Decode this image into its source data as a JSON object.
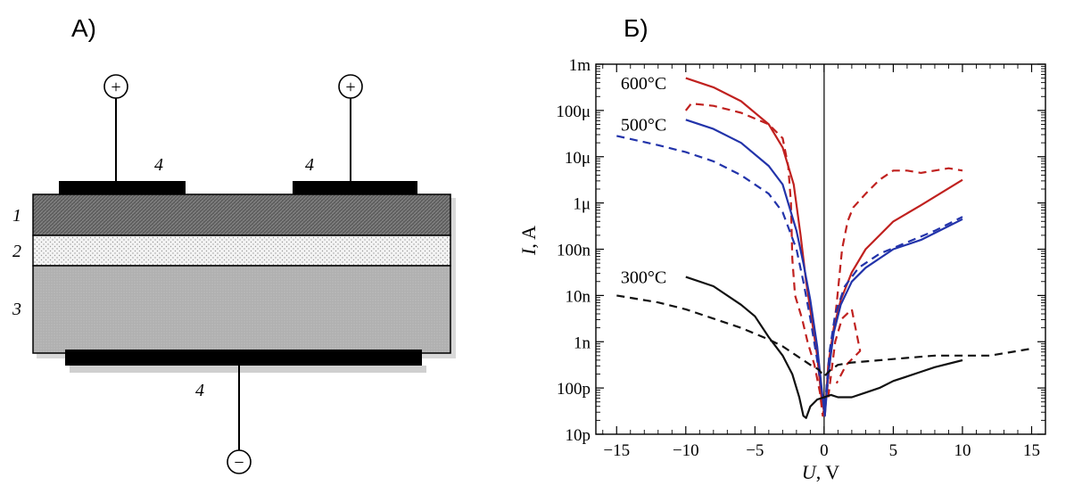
{
  "panels": {
    "left": {
      "label": "А)"
    },
    "right": {
      "label": "Б)"
    }
  },
  "device": {
    "layer_labels": [
      "1",
      "2",
      "3"
    ],
    "electrode_label": "4",
    "plus_sign": "+",
    "minus_sign": "−",
    "colors": {
      "layer1": "#6b6b6b",
      "layer2": "#f2f2f2",
      "layer3": "#b3b3b3",
      "electrode": "#000000"
    }
  },
  "chart_data": {
    "type": "line",
    "xlabel_symbol": "U",
    "xlabel_unit": ", V",
    "ylabel_symbol": "I",
    "ylabel_unit": ", A",
    "x_range": [
      -16.5,
      16
    ],
    "y_scale": "log",
    "y_range_log10": [
      -11,
      -3
    ],
    "x_ticks": [
      {
        "v": -15,
        "label": "−15"
      },
      {
        "v": -10,
        "label": "−10"
      },
      {
        "v": -5,
        "label": "−5"
      },
      {
        "v": 0,
        "label": "0"
      },
      {
        "v": 5,
        "label": "5"
      },
      {
        "v": 10,
        "label": "10"
      },
      {
        "v": 15,
        "label": "15"
      }
    ],
    "y_ticks": [
      {
        "e": -3,
        "label": "1m"
      },
      {
        "e": -4,
        "label": "100μ"
      },
      {
        "e": -5,
        "label": "10μ"
      },
      {
        "e": -6,
        "label": "1μ"
      },
      {
        "e": -7,
        "label": "100n"
      },
      {
        "e": -8,
        "label": "10n"
      },
      {
        "e": -9,
        "label": "1n"
      },
      {
        "e": -10,
        "label": "100p"
      },
      {
        "e": -11,
        "label": "10p"
      }
    ],
    "annotations": [
      {
        "text": "600°C",
        "x": -14.7,
        "e": -3.4
      },
      {
        "text": "500°C",
        "x": -14.7,
        "e": -4.3
      },
      {
        "text": "300°C",
        "x": -14.7,
        "e": -7.6
      }
    ],
    "series": [
      {
        "temp": "600°C",
        "style": "solid",
        "color": "#c0211f",
        "points": [
          [
            -10,
            -3.3
          ],
          [
            -8,
            -3.5
          ],
          [
            -6,
            -3.8
          ],
          [
            -4,
            -4.3
          ],
          [
            -3,
            -4.8
          ],
          [
            -2.2,
            -5.6
          ],
          [
            -1.7,
            -6.7
          ],
          [
            -1.3,
            -7.7
          ],
          [
            -0.9,
            -8.5
          ],
          [
            -0.5,
            -9.3
          ],
          [
            -0.2,
            -10.2
          ],
          [
            0.05,
            -10.6
          ],
          [
            0.3,
            -9.5
          ],
          [
            0.7,
            -8.7
          ],
          [
            1.2,
            -8.1
          ],
          [
            2,
            -7.5
          ],
          [
            3,
            -7.0
          ],
          [
            5,
            -6.4
          ],
          [
            7,
            -6.05
          ],
          [
            10,
            -5.5
          ]
        ]
      },
      {
        "temp": "600°C",
        "style": "dashed",
        "color": "#c0211f",
        "points": [
          [
            -10,
            -4.0
          ],
          [
            -9.6,
            -3.85
          ],
          [
            -8,
            -3.9
          ],
          [
            -6,
            -4.05
          ],
          [
            -4,
            -4.3
          ],
          [
            -3,
            -4.6
          ],
          [
            -2.6,
            -5.2
          ],
          [
            -2.4,
            -6.0
          ],
          [
            -2.3,
            -7.2
          ],
          [
            -2.1,
            -8.0
          ],
          [
            -1.6,
            -8.5
          ],
          [
            -1.2,
            -9.0
          ],
          [
            -0.7,
            -9.5
          ],
          [
            -0.3,
            -10.1
          ],
          [
            -0.1,
            -10.6
          ],
          [
            0.2,
            -10.1
          ],
          [
            0.5,
            -9.2
          ],
          [
            0.9,
            -8.2
          ],
          [
            1.3,
            -7.0
          ],
          [
            1.7,
            -6.4
          ],
          [
            2.1,
            -6.1
          ],
          [
            3,
            -5.8
          ],
          [
            4,
            -5.5
          ],
          [
            5,
            -5.3
          ],
          [
            6,
            -5.3
          ],
          [
            7,
            -5.35
          ],
          [
            8,
            -5.3
          ],
          [
            9,
            -5.25
          ],
          [
            10,
            -5.3
          ]
        ]
      },
      {
        "temp": "600°C",
        "style": "dashed",
        "color": "#c0211f",
        "points": [
          [
            0.3,
            -10.2
          ],
          [
            0.8,
            -9.0
          ],
          [
            1.3,
            -8.5
          ],
          [
            2.0,
            -8.3
          ],
          [
            2.6,
            -9.2
          ],
          [
            1.6,
            -9.5
          ],
          [
            0.9,
            -9.9
          ]
        ]
      },
      {
        "temp": "500°C",
        "style": "solid",
        "color": "#2233aa",
        "points": [
          [
            -10,
            -4.2
          ],
          [
            -8,
            -4.4
          ],
          [
            -6,
            -4.7
          ],
          [
            -4,
            -5.2
          ],
          [
            -3,
            -5.6
          ],
          [
            -2,
            -6.6
          ],
          [
            -1.5,
            -7.3
          ],
          [
            -1,
            -8.1
          ],
          [
            -0.5,
            -9.1
          ],
          [
            -0.15,
            -10.1
          ],
          [
            0.05,
            -10.6
          ],
          [
            0.3,
            -9.7
          ],
          [
            0.7,
            -8.8
          ],
          [
            1.2,
            -8.2
          ],
          [
            2,
            -7.7
          ],
          [
            3,
            -7.4
          ],
          [
            5,
            -7.0
          ],
          [
            7,
            -6.8
          ],
          [
            10,
            -6.35
          ]
        ]
      },
      {
        "temp": "500°C",
        "style": "dashed",
        "color": "#2233aa",
        "points": [
          [
            -15,
            -4.55
          ],
          [
            -12,
            -4.75
          ],
          [
            -10,
            -4.9
          ],
          [
            -8,
            -5.1
          ],
          [
            -6,
            -5.4
          ],
          [
            -4,
            -5.8
          ],
          [
            -3,
            -6.2
          ],
          [
            -2,
            -7.0
          ],
          [
            -1.5,
            -7.7
          ],
          [
            -1,
            -8.5
          ],
          [
            -0.5,
            -9.4
          ],
          [
            -0.15,
            -10.1
          ],
          [
            0.05,
            -10.4
          ],
          [
            0.4,
            -9.2
          ],
          [
            0.8,
            -8.4
          ],
          [
            1.5,
            -7.8
          ],
          [
            2.5,
            -7.4
          ],
          [
            4,
            -7.1
          ],
          [
            6,
            -6.85
          ],
          [
            8,
            -6.6
          ],
          [
            10,
            -6.3
          ]
        ]
      },
      {
        "temp": "300°C",
        "style": "solid",
        "color": "#111111",
        "points": [
          [
            -10,
            -7.6
          ],
          [
            -8,
            -7.8
          ],
          [
            -6,
            -8.2
          ],
          [
            -5,
            -8.45
          ],
          [
            -4,
            -8.9
          ],
          [
            -3,
            -9.3
          ],
          [
            -2.3,
            -9.7
          ],
          [
            -1.8,
            -10.2
          ],
          [
            -1.5,
            -10.6
          ],
          [
            -1.3,
            -10.65
          ],
          [
            -1.0,
            -10.4
          ],
          [
            -0.5,
            -10.25
          ],
          [
            0,
            -10.2
          ],
          [
            0.5,
            -10.15
          ],
          [
            1,
            -10.2
          ],
          [
            2,
            -10.2
          ],
          [
            3,
            -10.1
          ],
          [
            4,
            -10.0
          ],
          [
            5,
            -9.85
          ],
          [
            6,
            -9.75
          ],
          [
            7,
            -9.65
          ],
          [
            8,
            -9.55
          ],
          [
            10,
            -9.4
          ]
        ]
      },
      {
        "temp": "300°C",
        "style": "dashed",
        "color": "#111111",
        "points": [
          [
            -15,
            -8.0
          ],
          [
            -12,
            -8.15
          ],
          [
            -10,
            -8.3
          ],
          [
            -8,
            -8.5
          ],
          [
            -6,
            -8.7
          ],
          [
            -4,
            -8.95
          ],
          [
            -3,
            -9.1
          ],
          [
            -2,
            -9.3
          ],
          [
            -1,
            -9.5
          ],
          [
            -0.4,
            -9.6
          ],
          [
            0,
            -9.75
          ],
          [
            0.5,
            -9.6
          ],
          [
            1,
            -9.5
          ],
          [
            2,
            -9.45
          ],
          [
            4,
            -9.4
          ],
          [
            6,
            -9.35
          ],
          [
            8,
            -9.3
          ],
          [
            10,
            -9.3
          ],
          [
            12,
            -9.3
          ],
          [
            14,
            -9.2
          ],
          [
            15,
            -9.15
          ]
        ]
      }
    ]
  }
}
